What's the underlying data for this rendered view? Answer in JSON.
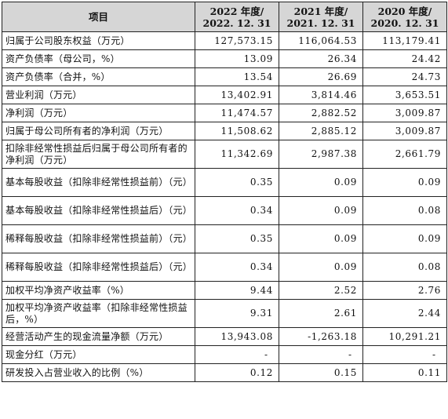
{
  "header": {
    "item": "项目",
    "col_2022_year": "2022 年度/",
    "col_2022_date": "2022. 12. 31",
    "col_2021_year": "2021 年度/",
    "col_2021_date": "2021. 12. 31",
    "col_2020_year": "2020 年度/",
    "col_2020_date": "2020. 12. 31"
  },
  "rows": [
    {
      "label": "归属于公司股东权益（万元）",
      "v2022": "127,573.15",
      "v2021": "116,064.53",
      "v2020": "113,179.41"
    },
    {
      "label": "资产负债率（母公司，%）",
      "v2022": "13.09",
      "v2021": "26.34",
      "v2020": "24.42"
    },
    {
      "label": "资产负债率（合并，%）",
      "v2022": "13.54",
      "v2021": "26.69",
      "v2020": "24.73"
    },
    {
      "label": "营业利润（万元）",
      "v2022": "13,402.91",
      "v2021": "3,814.46",
      "v2020": "3,653.51"
    },
    {
      "label": "净利润（万元）",
      "v2022": "11,474.57",
      "v2021": "2,882.52",
      "v2020": "3,009.87"
    },
    {
      "label": "归属于母公司所有者的净利润（万元）",
      "v2022": "11,508.62",
      "v2021": "2,885.12",
      "v2020": "3,009.87"
    },
    {
      "label": "扣除非经常性损益后归属于母公司所有者的净利润（万元）",
      "v2022": "11,342.69",
      "v2021": "2,987.38",
      "v2020": "2,661.79"
    },
    {
      "label": "基本每股收益（扣除非经常性损益前）（元）",
      "v2022": "0.35",
      "v2021": "0.09",
      "v2020": "0.09"
    },
    {
      "label": "基本每股收益（扣除非经常性损益后）（元）",
      "v2022": "0.34",
      "v2021": "0.09",
      "v2020": "0.08"
    },
    {
      "label": "稀释每股收益（扣除非经常性损益前）（元）",
      "v2022": "0.35",
      "v2021": "0.09",
      "v2020": "0.09"
    },
    {
      "label": "稀释每股收益（扣除非经常性损益后）（元）",
      "v2022": "0.34",
      "v2021": "0.09",
      "v2020": "0.08"
    },
    {
      "label": "加权平均净资产收益率（%）",
      "v2022": "9.44",
      "v2021": "2.52",
      "v2020": "2.76"
    },
    {
      "label": "加权平均净资产收益率（扣除非经常性损益后，%）",
      "v2022": "9.31",
      "v2021": "2.61",
      "v2020": "2.44"
    },
    {
      "label": "经营活动产生的现金流量净额（万元）",
      "v2022": "13,943.08",
      "v2021": "-1,263.18",
      "v2020": "10,291.21"
    },
    {
      "label": "现金分红（万元）",
      "v2022": "-",
      "v2021": "-",
      "v2020": "-"
    },
    {
      "label": "研发投入占营业收入的比例（%）",
      "v2022": "0.12",
      "v2021": "0.15",
      "v2020": "0.11"
    }
  ]
}
